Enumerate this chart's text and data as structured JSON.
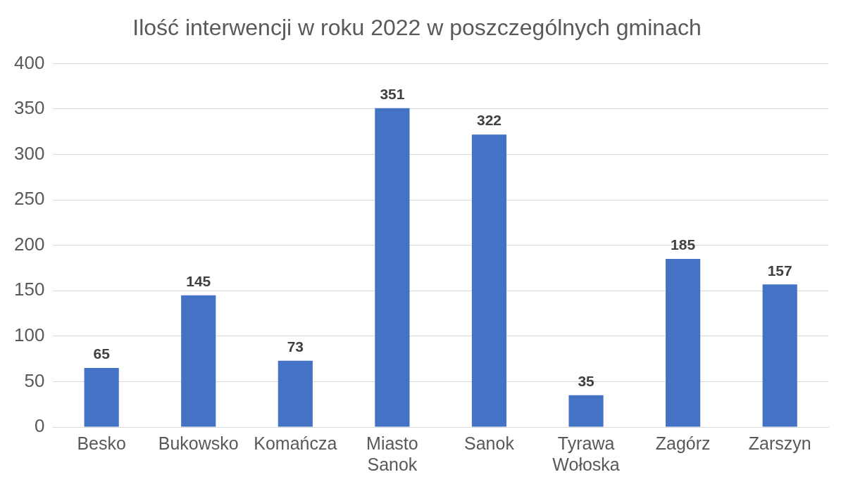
{
  "chart_data": {
    "type": "bar",
    "title": "Ilość interwencji w roku 2022 w poszczególnych gminach",
    "categories": [
      "Besko",
      "Bukowsko",
      "Komańcza",
      "Miasto Sanok",
      "Sanok",
      "Tyrawa Wołoska",
      "Zagórz",
      "Zarszyn"
    ],
    "values": [
      65,
      145,
      73,
      351,
      322,
      35,
      185,
      157
    ],
    "color": "#4472c4",
    "ylim": [
      0,
      400
    ],
    "yticks": [
      0,
      50,
      100,
      150,
      200,
      250,
      300,
      350,
      400
    ],
    "grid": "y",
    "legend": false,
    "data_labels": true
  }
}
